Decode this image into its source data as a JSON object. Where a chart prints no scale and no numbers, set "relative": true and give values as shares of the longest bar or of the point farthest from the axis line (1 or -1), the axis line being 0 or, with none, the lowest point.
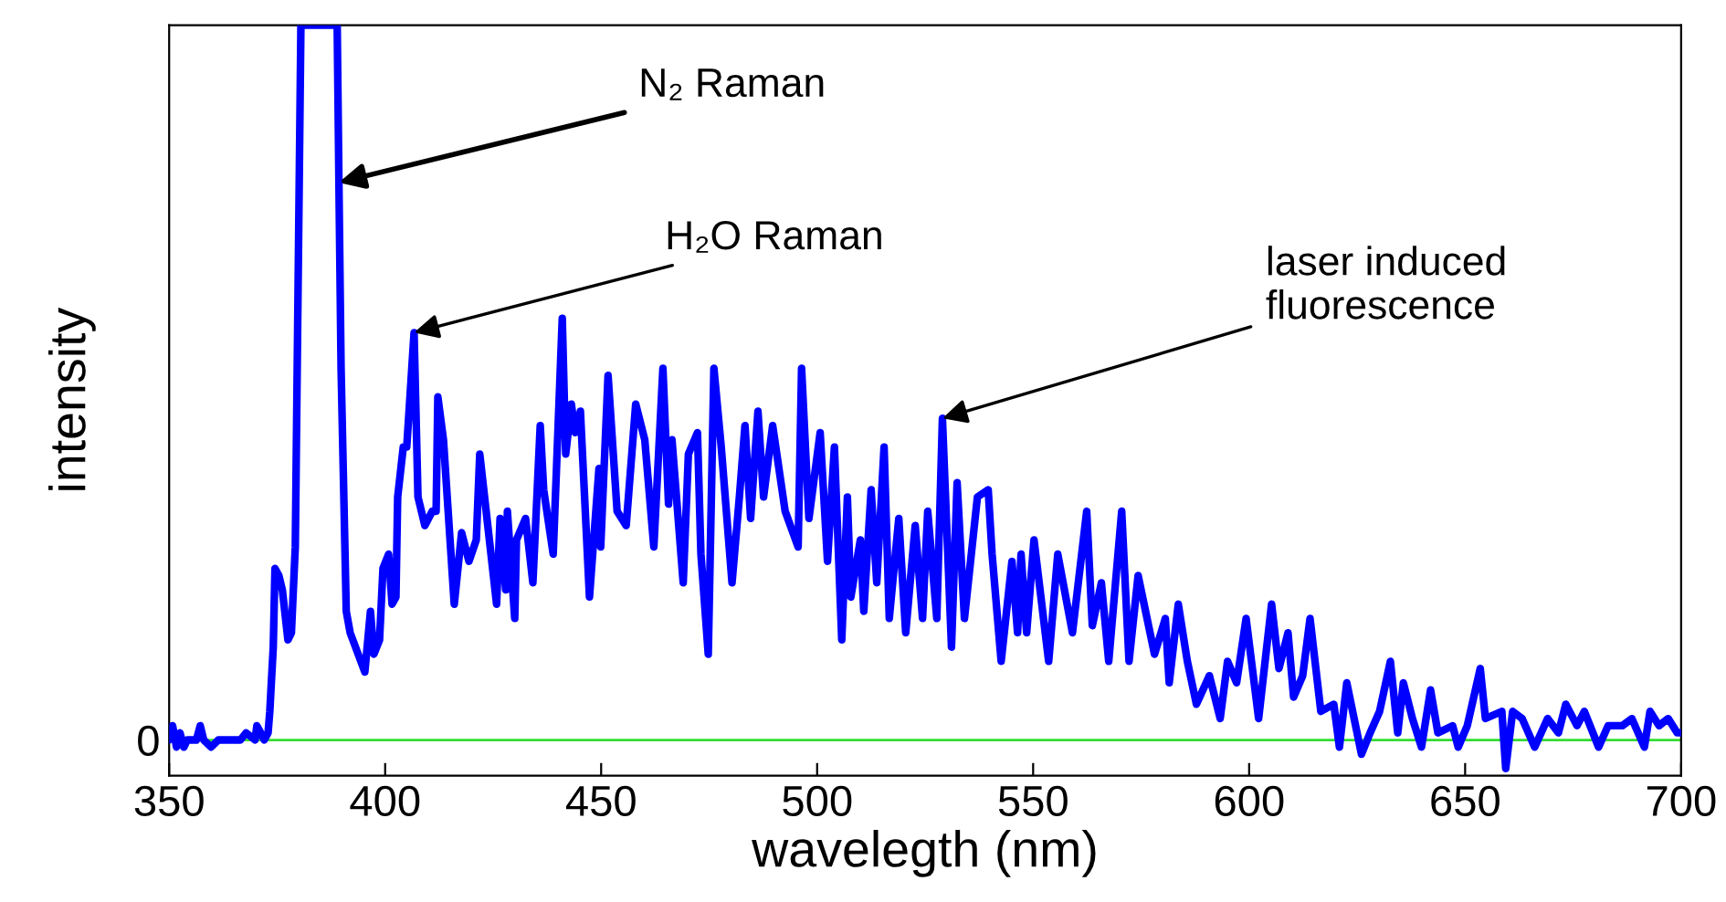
{
  "chart_data": {
    "type": "line",
    "xlabel": "wavelegth (nm)",
    "ylabel": "intensity",
    "relative": true,
    "xlim": [
      350,
      700
    ],
    "xticks": [
      350,
      400,
      450,
      500,
      550,
      600,
      650,
      700
    ],
    "grid": false,
    "legend": false,
    "marker": "none",
    "line_style": "solid",
    "ref_lines": [
      {
        "axis": "y",
        "value": 0,
        "label": "0",
        "color": "#33dd33"
      }
    ],
    "annotations": [
      {
        "text": "N₂ Raman",
        "x": 389.3,
        "y": 0.78
      },
      {
        "text": "H₂O Raman",
        "x": 406.7,
        "y": 0.57
      },
      {
        "text": "laser induced\nfluorescence",
        "x": 529,
        "y": 0.45
      }
    ],
    "series": [
      {
        "color": "#0000ff",
        "x": [
          350,
          350.8,
          351.7,
          352.5,
          353.4,
          354.2,
          356.3,
          357.2,
          358,
          359.7,
          361.4,
          363.1,
          364.8,
          366.5,
          367.8,
          369.9,
          370.3,
          371.2,
          372,
          372.9,
          373.3,
          374.1,
          374.5,
          375.4,
          376.2,
          377.5,
          378.3,
          379.2,
          380.5,
          388.9,
          389.3,
          389.8,
          391,
          391.9,
          395.3,
          396.6,
          397.4,
          398.7,
          399.5,
          400.8,
          401.6,
          402.5,
          402.9,
          404.2,
          405,
          406.7,
          407.6,
          409.2,
          410.9,
          411.8,
          412.2,
          413.5,
          416,
          417.7,
          419.4,
          421.1,
          421.9,
          425.8,
          426.6,
          427.9,
          428.3,
          430,
          430.4,
          432.5,
          434.2,
          435.9,
          436.7,
          438.9,
          441,
          441.8,
          443.1,
          444,
          445.2,
          447.3,
          449.5,
          449.9,
          451.6,
          453.7,
          455.8,
          458,
          460.1,
          462.2,
          464.3,
          465.6,
          466.4,
          469,
          470.2,
          472.3,
          473.1,
          474.8,
          476.1,
          477.8,
          480.3,
          482,
          483.3,
          484.6,
          486.3,
          487.6,
          489.7,
          492.6,
          495.6,
          496.4,
          498.1,
          500.7,
          502.4,
          504,
          505.7,
          507,
          507.8,
          510,
          510.8,
          512.5,
          513.8,
          515.5,
          516.7,
          518.9,
          520.5,
          522.7,
          524.4,
          525.6,
          527.7,
          529,
          531.1,
          532.4,
          534.1,
          537.1,
          539.6,
          540.5,
          542.6,
          545.1,
          546.4,
          547.2,
          548.5,
          550.2,
          553.6,
          555.7,
          559.1,
          562.4,
          563.7,
          565.8,
          567.5,
          570.5,
          572.2,
          574.3,
          578.1,
          580.6,
          581.5,
          583.6,
          585.7,
          587.8,
          590.8,
          593.3,
          595,
          597.1,
          599.3,
          602.2,
          605.2,
          606.9,
          609,
          610.3,
          612.4,
          614.1,
          616.6,
          619.6,
          620.9,
          622.6,
          626,
          628,
          630.2,
          632.7,
          634.4,
          635.7,
          637.8,
          639.9,
          642,
          643.7,
          647.1,
          648.4,
          650.5,
          653.5,
          654.7,
          658.5,
          659.4,
          661,
          663.2,
          666.1,
          669.1,
          671.6,
          673.3,
          675.9,
          677.6,
          680.9,
          683.1,
          686.4,
          688.6,
          691.5,
          692.8,
          694.9,
          697,
          699.1,
          700
        ],
        "values": [
          0,
          0.02,
          -0.01,
          0.01,
          -0.01,
          0,
          0,
          0.02,
          0,
          -0.01,
          0,
          0,
          0,
          0,
          0.01,
          0,
          0.02,
          0.01,
          0,
          0.01,
          0.04,
          0.13,
          0.24,
          0.23,
          0.21,
          0.14,
          0.15,
          0.27,
          1,
          1,
          0.78,
          0.52,
          0.18,
          0.15,
          0.095,
          0.18,
          0.12,
          0.14,
          0.24,
          0.26,
          0.19,
          0.2,
          0.34,
          0.41,
          0.41,
          0.57,
          0.34,
          0.3,
          0.32,
          0.32,
          0.48,
          0.42,
          0.19,
          0.29,
          0.25,
          0.28,
          0.4,
          0.19,
          0.31,
          0.21,
          0.32,
          0.17,
          0.28,
          0.31,
          0.22,
          0.44,
          0.35,
          0.26,
          0.59,
          0.4,
          0.47,
          0.43,
          0.46,
          0.2,
          0.38,
          0.27,
          0.51,
          0.32,
          0.3,
          0.47,
          0.42,
          0.27,
          0.52,
          0.33,
          0.42,
          0.22,
          0.4,
          0.43,
          0.26,
          0.12,
          0.52,
          0.41,
          0.22,
          0.34,
          0.44,
          0.31,
          0.46,
          0.34,
          0.44,
          0.32,
          0.27,
          0.52,
          0.31,
          0.43,
          0.25,
          0.41,
          0.14,
          0.34,
          0.2,
          0.28,
          0.18,
          0.35,
          0.22,
          0.41,
          0.17,
          0.31,
          0.15,
          0.3,
          0.17,
          0.32,
          0.17,
          0.45,
          0.13,
          0.36,
          0.17,
          0.34,
          0.35,
          0.26,
          0.11,
          0.25,
          0.15,
          0.26,
          0.15,
          0.28,
          0.11,
          0.26,
          0.15,
          0.32,
          0.16,
          0.22,
          0.11,
          0.32,
          0.11,
          0.23,
          0.12,
          0.17,
          0.08,
          0.19,
          0.11,
          0.05,
          0.09,
          0.03,
          0.11,
          0.08,
          0.17,
          0.03,
          0.19,
          0.1,
          0.15,
          0.06,
          0.09,
          0.17,
          0.04,
          0.05,
          -0.01,
          0.08,
          -0.02,
          0.01,
          0.04,
          0.11,
          0.01,
          0.08,
          0.03,
          -0.01,
          0.07,
          0.01,
          0.02,
          -0.01,
          0.02,
          0.1,
          0.03,
          0.04,
          -0.04,
          0.04,
          0.03,
          -0.01,
          0.03,
          0.01,
          0.05,
          0.02,
          0.04,
          -0.01,
          0.02,
          0.02,
          0.03,
          -0.01,
          0.04,
          0.02,
          0.03,
          0.01,
          0.01
        ]
      }
    ]
  }
}
